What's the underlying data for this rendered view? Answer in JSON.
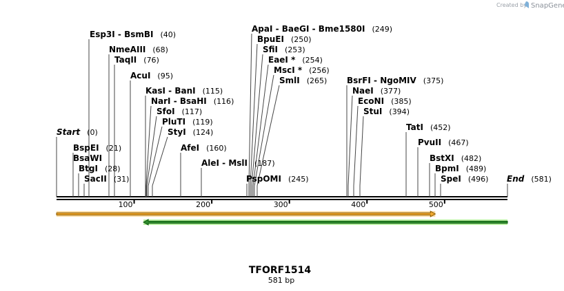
{
  "branding": {
    "created_by": "Created by",
    "app_name": "SnapGene",
    "icon": "snapgene-logo-icon"
  },
  "sequence": {
    "name": "TFORF1514",
    "length_label": "581 bp",
    "length": 581
  },
  "ruler": {
    "ticks": [
      100,
      200,
      300,
      400,
      500
    ]
  },
  "ends": [
    {
      "label": "Start",
      "pos": 0
    },
    {
      "label": "End",
      "pos": 581
    }
  ],
  "sites": [
    {
      "label": "Esp3I  -  BsmBI",
      "pos": 40
    },
    {
      "label": "NmeAIII",
      "pos": 68
    },
    {
      "label": "TaqII",
      "pos": 76
    },
    {
      "label": "AcuI",
      "pos": 95
    },
    {
      "label": "KasI  -  BanI",
      "pos": 115
    },
    {
      "label": "NarI  -  BsaHI",
      "pos": 116
    },
    {
      "label": "SfoI",
      "pos": 117
    },
    {
      "label": "PluTI",
      "pos": 119
    },
    {
      "label": "StyI",
      "pos": 124
    },
    {
      "label": "AfeI",
      "pos": 160
    },
    {
      "label": "BspEI",
      "pos": 21
    },
    {
      "label": "BsaWI",
      "pos": null
    },
    {
      "label": "BtgI",
      "pos": 28
    },
    {
      "label": "SacII",
      "pos": 31
    },
    {
      "label": "ApaI  -  BaeGI  -  Bme1580I",
      "pos": 249
    },
    {
      "label": "BpuEI",
      "pos": 250
    },
    {
      "label": "SfiI",
      "pos": 253
    },
    {
      "label": "EaeI *",
      "pos": 254
    },
    {
      "label": "MscI *",
      "pos": 256
    },
    {
      "label": "SmlI",
      "pos": 265
    },
    {
      "label": "AleI  -  MslI",
      "pos": 187
    },
    {
      "label": "PspOMI",
      "pos": 245
    },
    {
      "label": "BsrFI  -  NgoMIV",
      "pos": 375
    },
    {
      "label": "NaeI",
      "pos": 377
    },
    {
      "label": "EcoNI",
      "pos": 385
    },
    {
      "label": "StuI",
      "pos": 394
    },
    {
      "label": "TatI",
      "pos": 452
    },
    {
      "label": "PvuII",
      "pos": 467
    },
    {
      "label": "BstXI",
      "pos": 482
    },
    {
      "label": "BpmI",
      "pos": 489
    },
    {
      "label": "SpeI",
      "pos": 496
    }
  ],
  "features": [
    {
      "direction": "forward",
      "start": 0,
      "end": 488,
      "fill": "#f0a830",
      "stroke": "#8a5a00",
      "glow": "#f9d9a0"
    },
    {
      "direction": "reverse",
      "start": 112,
      "end": 581,
      "fill": "#2e8b2e",
      "stroke": "#0f5a0f",
      "glow": "#b8f0a0"
    }
  ]
}
